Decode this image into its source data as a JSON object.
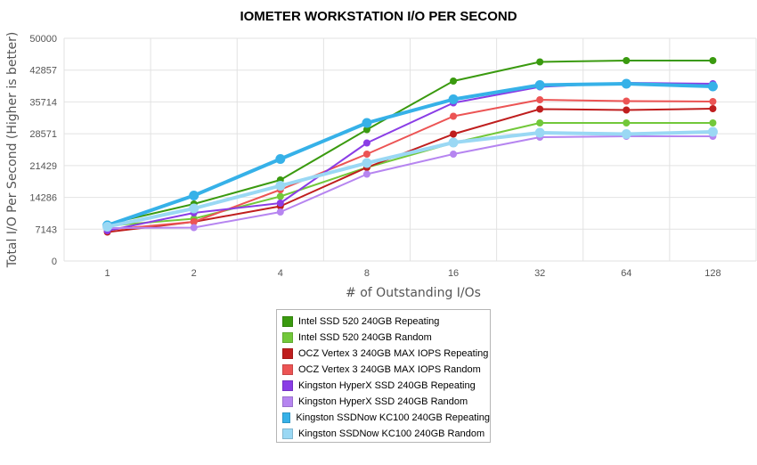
{
  "chart_data": {
    "type": "line",
    "title": "IOMETER WORKSTATION I/O PER SECOND",
    "xlabel": "# of Outstanding I/Os",
    "ylabel": "Total I/O Per Second (Higher is better)",
    "categories": [
      "1",
      "2",
      "4",
      "8",
      "16",
      "32",
      "64",
      "128"
    ],
    "ylim": [
      0,
      50000
    ],
    "yticks": [
      "0",
      "7143",
      "14286",
      "21429",
      "28571",
      "35714",
      "42857",
      "50000"
    ],
    "grid": true,
    "legend_position": "bottom",
    "series": [
      {
        "name": "Intel SSD 520 240GB Repeating",
        "color": "#3a9a0f",
        "values": [
          8300,
          12800,
          18200,
          29500,
          40400,
          44700,
          45000,
          45000
        ]
      },
      {
        "name": "Intel SSD 520 240GB Random",
        "color": "#72c83a",
        "values": [
          7900,
          9500,
          14500,
          21000,
          26500,
          31000,
          31000,
          31000
        ]
      },
      {
        "name": "OCZ Vertex 3 240GB MAX IOPS Repeating",
        "color": "#bf1e1e",
        "values": [
          6500,
          8800,
          12300,
          21000,
          28500,
          34100,
          33900,
          34200
        ]
      },
      {
        "name": "OCZ Vertex 3 240GB MAX IOPS Random",
        "color": "#ec5454",
        "values": [
          7000,
          8800,
          16000,
          24000,
          32500,
          36200,
          35900,
          35800
        ]
      },
      {
        "name": "Kingston HyperX SSD 240GB Repeating",
        "color": "#8a3de6",
        "values": [
          6800,
          10800,
          13000,
          26500,
          35500,
          39100,
          40000,
          39800
        ]
      },
      {
        "name": "Kingston HyperX SSD 240GB Random",
        "color": "#b685f0",
        "values": [
          7400,
          7500,
          11000,
          19500,
          24000,
          27800,
          28000,
          28000
        ]
      },
      {
        "name": "Kingston SSDNow KC100 240GB Repeating",
        "color": "#36b1e8",
        "values": [
          8000,
          14700,
          22900,
          31000,
          36300,
          39500,
          39800,
          39200
        ]
      },
      {
        "name": "Kingston SSDNow KC100 240GB Random",
        "color": "#9ad8f4",
        "values": [
          7700,
          11800,
          16900,
          22000,
          26600,
          28800,
          28500,
          29000
        ]
      }
    ]
  }
}
